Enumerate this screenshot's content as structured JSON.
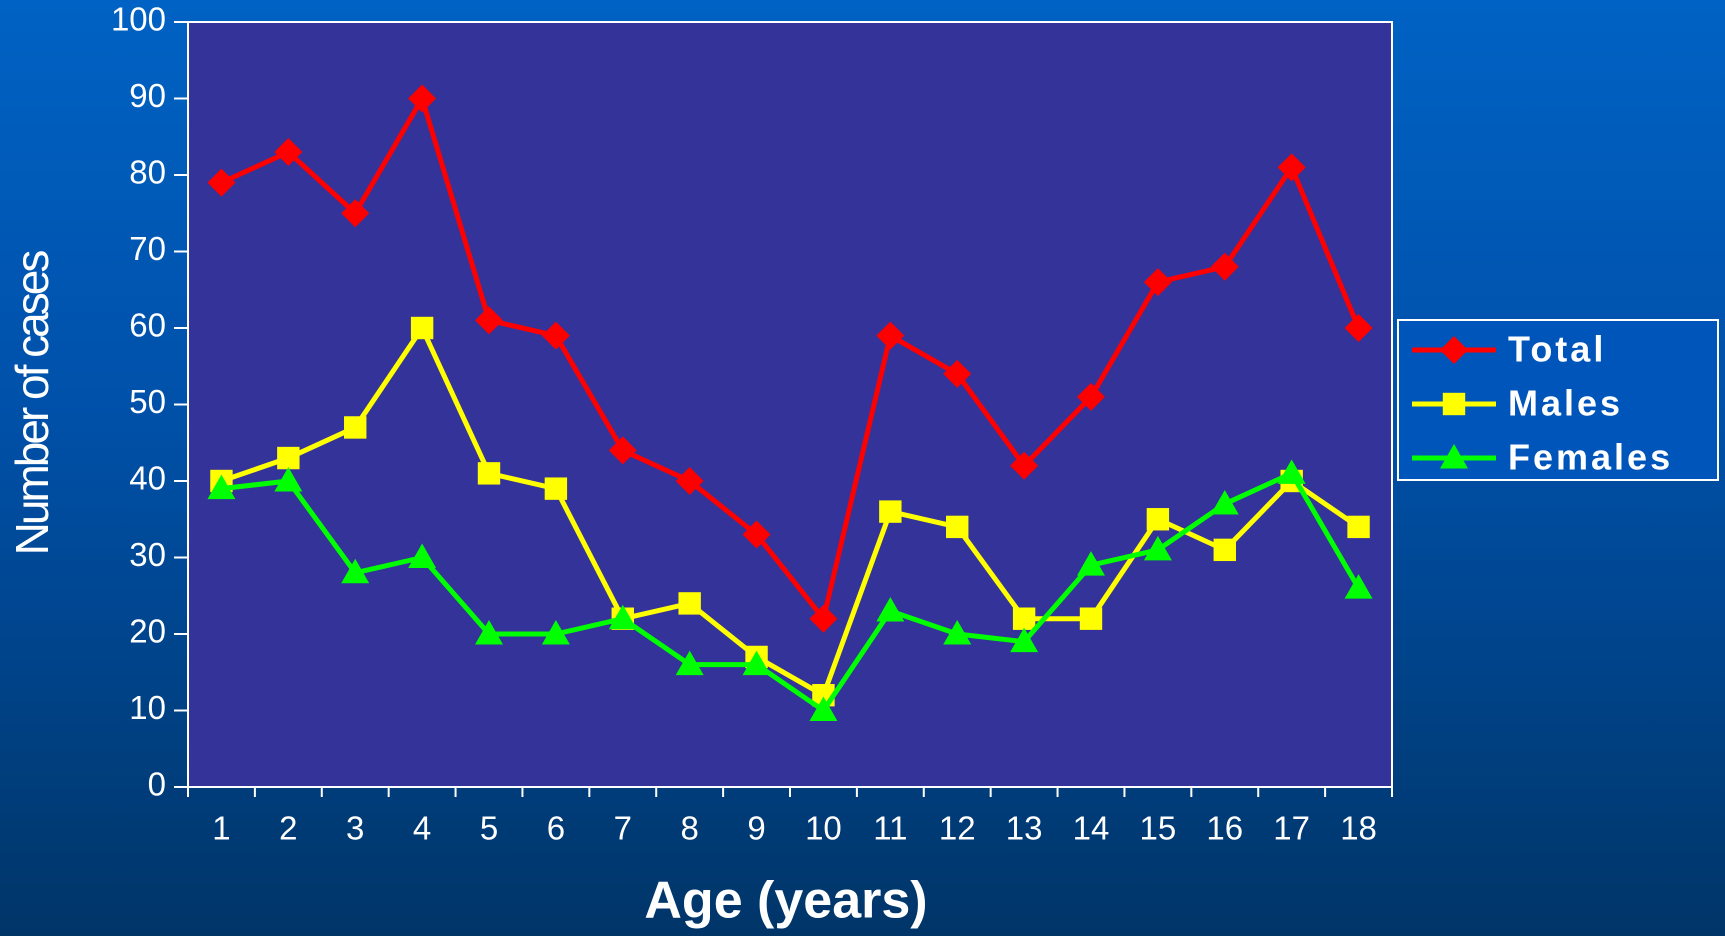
{
  "chart_data": {
    "type": "line",
    "x_label": "Age (years)",
    "y_label": "Number of cases",
    "categories": [
      "1",
      "2",
      "3",
      "4",
      "5",
      "6",
      "7",
      "8",
      "9",
      "10",
      "11",
      "12",
      "13",
      "14",
      "15",
      "16",
      "17",
      "18"
    ],
    "series": [
      {
        "name": "Total",
        "color": "#ff0000",
        "marker": "diamond",
        "values": [
          79,
          83,
          75,
          90,
          61,
          59,
          44,
          40,
          33,
          22,
          59,
          54,
          42,
          51,
          66,
          68,
          81,
          60
        ]
      },
      {
        "name": "Males",
        "color": "#ffff00",
        "marker": "square",
        "values": [
          40,
          43,
          47,
          60,
          41,
          39,
          22,
          24,
          17,
          12,
          36,
          34,
          22,
          22,
          35,
          31,
          40,
          34
        ]
      },
      {
        "name": "Females",
        "color": "#00ff00",
        "marker": "triangle",
        "values": [
          39,
          40,
          28,
          30,
          20,
          20,
          22,
          16,
          16,
          10,
          23,
          20,
          19,
          29,
          31,
          37,
          41,
          26
        ]
      }
    ],
    "ylim": [
      0,
      100
    ],
    "yticks": [
      0,
      10,
      20,
      30,
      40,
      50,
      60,
      70,
      80,
      90,
      100
    ],
    "legend": "right"
  }
}
